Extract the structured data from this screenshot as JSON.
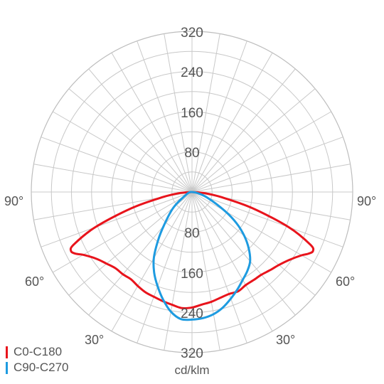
{
  "chart_data": {
    "type": "polar-line",
    "title": "",
    "unit": "cd/klm",
    "radial_ticks": [
      "80",
      "160",
      "240",
      "320"
    ],
    "radial_tick_values": [
      80,
      160,
      240,
      320
    ],
    "rmax": 320,
    "angle_labels": {
      "left_90": "90°",
      "right_90": "90°",
      "left_60": "60°",
      "right_60": "60°",
      "left_30": "30°",
      "right_30": "30°"
    },
    "grid": true,
    "legend_position": "bottom-left",
    "angle_note": "gamma angle in degrees measured from nadir (0 = straight down), negative = left half",
    "series": [
      {
        "name": "C0-C180",
        "color": "#e8141c",
        "points": [
          [
            -90,
            0
          ],
          [
            -85,
            25
          ],
          [
            -80,
            60
          ],
          [
            -75,
            125
          ],
          [
            -70,
            205
          ],
          [
            -66,
            258
          ],
          [
            -64,
            268
          ],
          [
            -62,
            262
          ],
          [
            -60,
            250
          ],
          [
            -55,
            232
          ],
          [
            -50,
            222
          ],
          [
            -45,
            215
          ],
          [
            -40,
            214
          ],
          [
            -35,
            212
          ],
          [
            -30,
            216
          ],
          [
            -25,
            220
          ],
          [
            -20,
            222
          ],
          [
            -15,
            225
          ],
          [
            -10,
            228
          ],
          [
            -5,
            232
          ],
          [
            0,
            230
          ],
          [
            5,
            225
          ],
          [
            10,
            222
          ],
          [
            15,
            218
          ],
          [
            20,
            216
          ],
          [
            25,
            218
          ],
          [
            30,
            214
          ],
          [
            35,
            214
          ],
          [
            40,
            215
          ],
          [
            45,
            220
          ],
          [
            50,
            226
          ],
          [
            55,
            236
          ],
          [
            60,
            252
          ],
          [
            62,
            262
          ],
          [
            64,
            268
          ],
          [
            66,
            258
          ],
          [
            70,
            205
          ],
          [
            75,
            125
          ],
          [
            80,
            60
          ],
          [
            85,
            25
          ],
          [
            90,
            0
          ]
        ]
      },
      {
        "name": "C90-C270",
        "color": "#1e9be0",
        "points": [
          [
            -90,
            0
          ],
          [
            -70,
            10
          ],
          [
            -50,
            48
          ],
          [
            -40,
            87
          ],
          [
            -35,
            118
          ],
          [
            -30,
            152
          ],
          [
            -25,
            178
          ],
          [
            -20,
            200
          ],
          [
            -15,
            222
          ],
          [
            -10,
            242
          ],
          [
            -5,
            254
          ],
          [
            0,
            254
          ],
          [
            5,
            252
          ],
          [
            10,
            247
          ],
          [
            15,
            238
          ],
          [
            20,
            226
          ],
          [
            25,
            214
          ],
          [
            30,
            202
          ],
          [
            35,
            192
          ],
          [
            40,
            180
          ],
          [
            45,
            160
          ],
          [
            50,
            136
          ],
          [
            55,
            108
          ],
          [
            60,
            76
          ],
          [
            70,
            32
          ],
          [
            80,
            10
          ],
          [
            90,
            0
          ]
        ]
      }
    ]
  }
}
